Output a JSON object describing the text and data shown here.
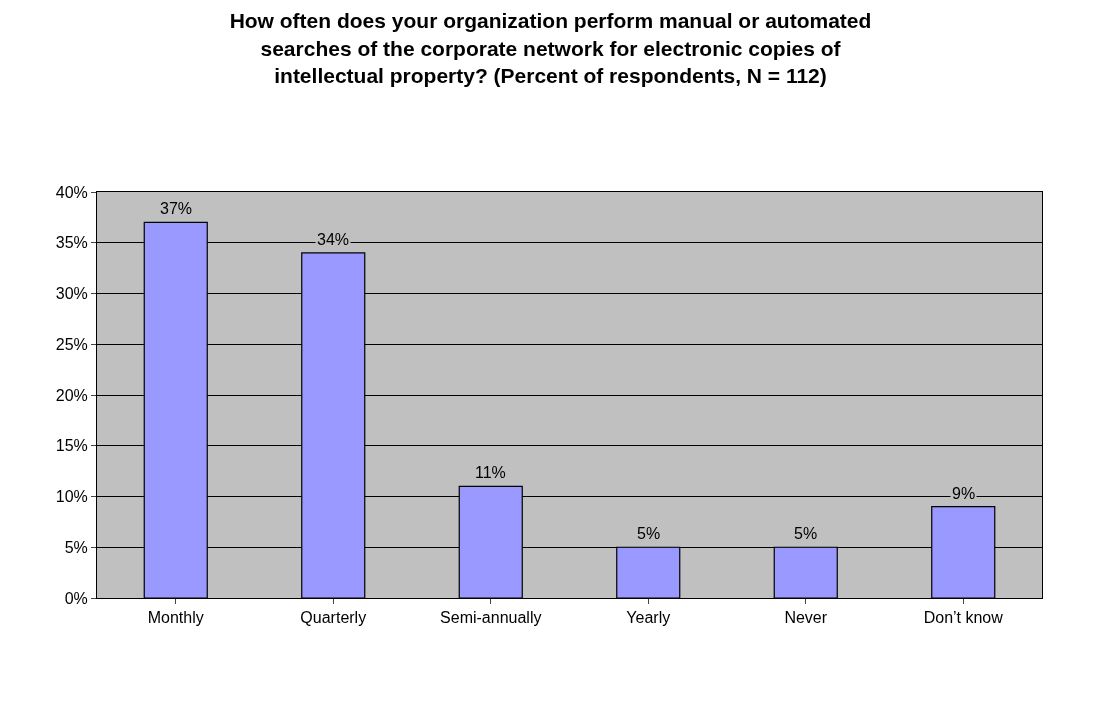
{
  "chart_data": {
    "type": "bar",
    "title": "How often does your organization perform manual or automated searches of the corporate network for electronic copies of intellectual property? (Percent of respondents, N = 112)",
    "categories": [
      "Monthly",
      "Quarterly",
      "Semi-annually",
      "Yearly",
      "Never",
      "Don’t know"
    ],
    "values": [
      37,
      34,
      11,
      5,
      5,
      9
    ],
    "value_labels": [
      "37%",
      "34%",
      "11%",
      "5%",
      "5%",
      "9%"
    ],
    "color": "#9999ff",
    "ylim": [
      0,
      40
    ],
    "yticks": [
      {
        "value": 0,
        "label": "0%"
      },
      {
        "value": 5,
        "label": "5%"
      },
      {
        "value": 10,
        "label": "10%"
      },
      {
        "value": 15,
        "label": "15%"
      },
      {
        "value": 20,
        "label": "20%"
      },
      {
        "value": 25,
        "label": "25%"
      },
      {
        "value": 30,
        "label": "30%"
      },
      {
        "value": 35,
        "label": "35%"
      },
      {
        "value": 40,
        "label": "40%"
      }
    ],
    "grid": "y",
    "legend": false
  }
}
